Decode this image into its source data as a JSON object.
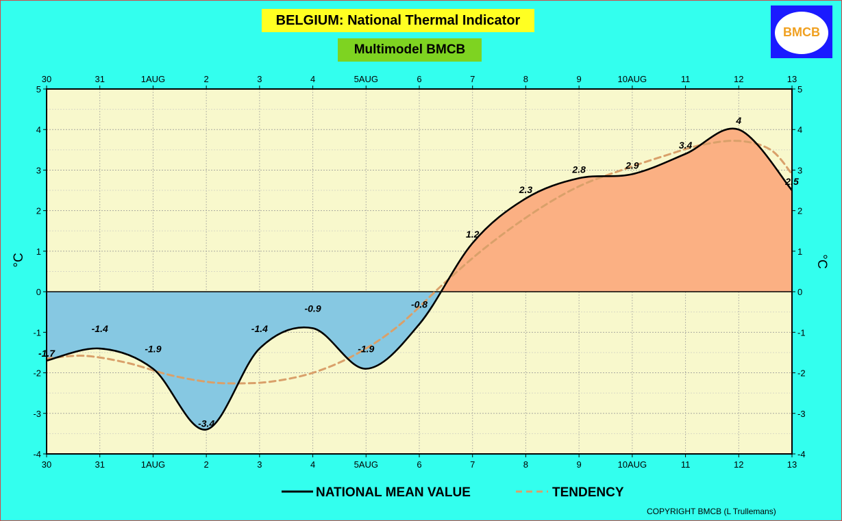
{
  "header": {
    "title": "BELGIUM:  National Thermal Indicator",
    "subtitle": "Multimodel BMCB",
    "logo_text": "BMCB"
  },
  "footer": {
    "copyright": "COPYRIGHT BMCB (L Trullemans)"
  },
  "colors": {
    "background": "#33ffee",
    "plot_background": "#f8f8cc",
    "positive_fill": "#fbb083",
    "negative_fill": "#86c8e2",
    "mean_line": "#000000",
    "tendency_line": "#d9a06a"
  },
  "chart_data": {
    "type": "line",
    "x_ticks": [
      "30",
      "31",
      "1AUG",
      "2",
      "3",
      "4",
      "5AUG",
      "6",
      "7",
      "8",
      "9",
      "10AUG",
      "11",
      "12",
      "13"
    ],
    "xlim": [
      0,
      14
    ],
    "ylim": [
      -4,
      5
    ],
    "y_ticks": [
      -4,
      -3,
      -2,
      -1,
      0,
      1,
      2,
      3,
      4,
      5
    ],
    "ylabel": "°C",
    "grid": true,
    "legend": {
      "placement": "bottom",
      "entries": [
        "NATIONAL MEAN VALUE",
        "TENDENCY"
      ]
    },
    "series": [
      {
        "name": "NATIONAL MEAN VALUE",
        "style": "solid",
        "x": [
          0,
          1,
          2,
          3,
          4,
          5,
          6,
          7,
          8,
          9,
          10,
          11,
          12,
          13,
          14
        ],
        "values": [
          -1.7,
          -1.4,
          -1.9,
          -3.4,
          -1.4,
          -0.9,
          -1.9,
          -0.8,
          1.2,
          2.3,
          2.8,
          2.9,
          3.4,
          4.0,
          2.5
        ],
        "labels": [
          "-1.7",
          "-1.4",
          "-1.9",
          "-3.4",
          "-1.4",
          "-0.9",
          "-1.9",
          "-0.8",
          "1.2",
          "2.3",
          "2.8",
          "2.9",
          "3.4",
          "4",
          "2.5"
        ]
      },
      {
        "name": "TENDENCY",
        "style": "dashed",
        "x": [
          0,
          0.7,
          1.5,
          2.3,
          3,
          3.5,
          4.2,
          5,
          5.8,
          6.6,
          7.5,
          8.3,
          9.2,
          10,
          10.8,
          11.6,
          12.3,
          13,
          13.6,
          14
        ],
        "values": [
          -1.65,
          -1.58,
          -1.75,
          -2.05,
          -2.22,
          -2.26,
          -2.22,
          -2.0,
          -1.55,
          -0.85,
          0.25,
          1.15,
          2.0,
          2.6,
          3.0,
          3.35,
          3.62,
          3.72,
          3.5,
          2.9
        ]
      }
    ]
  }
}
